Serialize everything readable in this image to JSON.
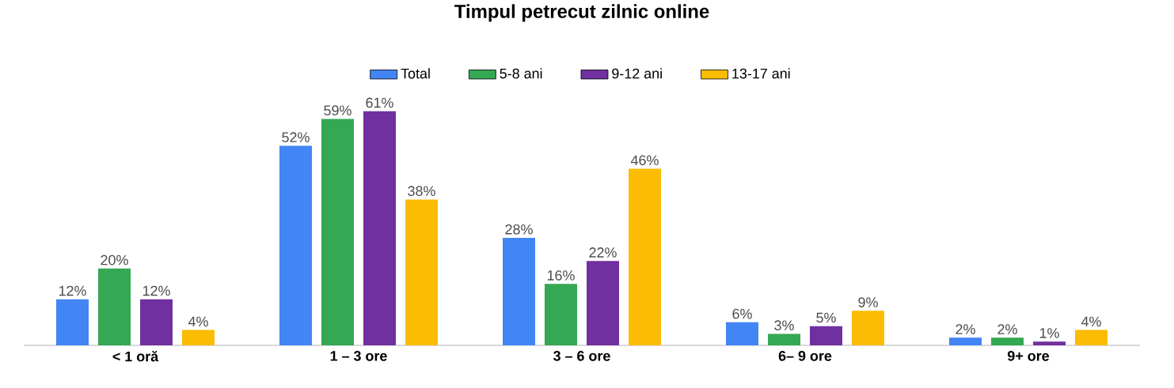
{
  "chart_data": {
    "type": "bar",
    "title": "Timpul petrecut zilnic online",
    "categories": [
      "< 1 oră",
      "1 – 3 ore",
      "3 – 6 ore",
      "6– 9 ore",
      "9+ ore"
    ],
    "series": [
      {
        "name": "Total",
        "color": "#4285f4",
        "values": [
          12,
          52,
          28,
          6,
          2
        ],
        "value_labels": [
          "12%",
          "52%",
          "28%",
          "6%",
          "2%"
        ]
      },
      {
        "name": "5-8 ani",
        "color": "#34a853",
        "values": [
          20,
          59,
          16,
          3,
          2
        ],
        "value_labels": [
          "20%",
          "59%",
          "16%",
          "3%",
          "2%"
        ]
      },
      {
        "name": "9-12 ani",
        "color": "#7030a0",
        "values": [
          12,
          61,
          22,
          5,
          1
        ],
        "value_labels": [
          "12%",
          "61%",
          "22%",
          "5%",
          "1%"
        ]
      },
      {
        "name": "13-17 ani",
        "color": "#fbbc04",
        "values": [
          4,
          38,
          46,
          9,
          4
        ],
        "value_labels": [
          "4%",
          "38%",
          "46%",
          "9%",
          "4%"
        ]
      }
    ],
    "legend": "top"
  }
}
